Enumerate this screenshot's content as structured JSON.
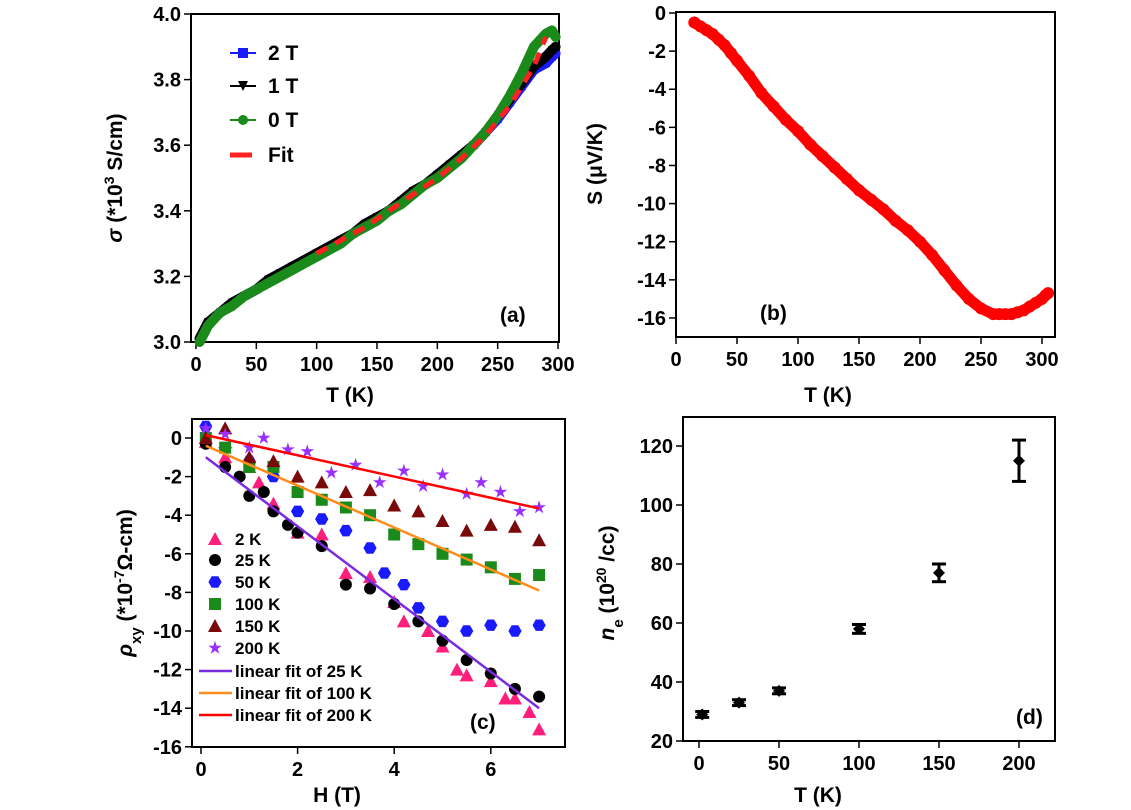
{
  "chart_data": [
    {
      "panel": "a",
      "type": "line",
      "tag": "(a)",
      "xlabel": "T (K)",
      "ylabel": {
        "symbol": "σ",
        "prefix": " (*10",
        "sup": "3",
        "suffix": " S/cm)"
      },
      "xlim": [
        0,
        300
      ],
      "ylim": [
        3.0,
        4.0
      ],
      "xticks": [
        "0",
        "50",
        "100",
        "150",
        "200",
        "250",
        "300"
      ],
      "yticks": [
        "3.0",
        "3.2",
        "3.4",
        "3.6",
        "3.8",
        "4.0"
      ],
      "legend_position": "top-left",
      "x": [
        3,
        10,
        20,
        30,
        40,
        50,
        60,
        70,
        80,
        90,
        100,
        110,
        120,
        130,
        140,
        150,
        160,
        170,
        180,
        190,
        200,
        210,
        220,
        230,
        240,
        250,
        260,
        270,
        280,
        290,
        295,
        298
      ],
      "series": [
        {
          "name": "2 T",
          "color": "#1a1aff",
          "marker": "square",
          "values": [
            3.01,
            3.06,
            3.09,
            3.12,
            3.14,
            3.16,
            3.19,
            3.21,
            3.23,
            3.25,
            3.27,
            3.29,
            3.31,
            3.33,
            3.36,
            3.38,
            3.4,
            3.43,
            3.46,
            3.48,
            3.51,
            3.54,
            3.57,
            3.6,
            3.64,
            3.68,
            3.73,
            3.78,
            3.83,
            3.85,
            3.87,
            3.88
          ]
        },
        {
          "name": "1 T",
          "color": "#000000",
          "marker": "triangle-down",
          "values": [
            3.01,
            3.06,
            3.09,
            3.12,
            3.14,
            3.16,
            3.19,
            3.21,
            3.23,
            3.25,
            3.27,
            3.29,
            3.31,
            3.33,
            3.36,
            3.38,
            3.4,
            3.43,
            3.46,
            3.48,
            3.51,
            3.54,
            3.57,
            3.6,
            3.64,
            3.69,
            3.74,
            3.79,
            3.84,
            3.87,
            3.89,
            3.9
          ]
        },
        {
          "name": "0 T",
          "color": "#1a8a1a",
          "marker": "circle",
          "values": [
            3.0,
            3.05,
            3.09,
            3.11,
            3.14,
            3.16,
            3.18,
            3.2,
            3.22,
            3.24,
            3.26,
            3.28,
            3.3,
            3.33,
            3.35,
            3.37,
            3.4,
            3.42,
            3.45,
            3.48,
            3.5,
            3.53,
            3.56,
            3.6,
            3.64,
            3.69,
            3.75,
            3.82,
            3.9,
            3.94,
            3.95,
            3.93
          ]
        },
        {
          "name": "Fit",
          "color": "#ff2020",
          "marker": "dashed-line",
          "x": [
            100,
            120,
            140,
            160,
            180,
            200,
            220,
            240,
            260,
            280,
            290
          ],
          "values": [
            3.27,
            3.31,
            3.35,
            3.4,
            3.45,
            3.5,
            3.56,
            3.63,
            3.72,
            3.84,
            3.93
          ]
        }
      ]
    },
    {
      "panel": "b",
      "type": "scatter",
      "tag": "(b)",
      "xlabel": "T (K)",
      "ylabel": {
        "symbol": "S",
        "prefix": " (μV/K)",
        "sup": "",
        "suffix": ""
      },
      "xlim": [
        0,
        310
      ],
      "ylim": [
        -17,
        0
      ],
      "xticks": [
        "0",
        "50",
        "100",
        "150",
        "200",
        "250",
        "300"
      ],
      "yticks": [
        "0",
        "-2",
        "-4",
        "-6",
        "-8",
        "-10",
        "-12",
        "-14",
        "-16"
      ],
      "color": "#ff0000",
      "x": [
        15,
        20,
        25,
        30,
        35,
        40,
        45,
        50,
        60,
        70,
        80,
        90,
        100,
        110,
        120,
        130,
        140,
        150,
        160,
        170,
        180,
        190,
        200,
        210,
        220,
        230,
        240,
        250,
        260,
        265,
        270,
        275,
        280,
        285,
        290,
        295,
        300,
        303,
        305
      ],
      "values": [
        -0.5,
        -0.7,
        -0.9,
        -1.1,
        -1.4,
        -1.7,
        -2.1,
        -2.5,
        -3.3,
        -4.2,
        -4.9,
        -5.6,
        -6.2,
        -6.9,
        -7.5,
        -8.1,
        -8.7,
        -9.3,
        -9.8,
        -10.3,
        -10.9,
        -11.4,
        -12.0,
        -12.7,
        -13.5,
        -14.3,
        -15.0,
        -15.5,
        -15.8,
        -15.8,
        -15.8,
        -15.8,
        -15.7,
        -15.6,
        -15.4,
        -15.2,
        -15.0,
        -14.8,
        -14.7
      ]
    },
    {
      "panel": "c",
      "type": "scatter",
      "tag": "(c)",
      "xlabel": "H (T)",
      "ylabel": {
        "symbol": "ρ",
        "sub": "xy",
        "prefix": " (*10",
        "sup": "-7",
        "suffix": "Ω-cm)"
      },
      "xlim": [
        0,
        7
      ],
      "ylim": [
        -16,
        1
      ],
      "xticks": [
        "0",
        "2",
        "4",
        "6"
      ],
      "yticks": [
        "0",
        "-2",
        "-4",
        "-6",
        "-8",
        "-10",
        "-12",
        "-14",
        "-16"
      ],
      "legend_position": "left",
      "series": [
        {
          "name": "2 K",
          "color": "#ff1f7a",
          "marker": "triangle",
          "x": [
            0.1,
            0.5,
            1.0,
            1.2,
            1.5,
            2.0,
            2.5,
            3.0,
            3.5,
            4.0,
            4.2,
            4.7,
            5.0,
            5.3,
            5.5,
            6.0,
            6.3,
            6.5,
            6.8,
            7.0
          ],
          "values": [
            -0.2,
            -1.0,
            -1.5,
            -2.3,
            -3.4,
            -4.9,
            -5.0,
            -7.0,
            -7.2,
            -8.5,
            -9.5,
            -10.0,
            -10.8,
            -12.0,
            -12.3,
            -12.6,
            -13.5,
            -13.5,
            -14.2,
            -15.1
          ]
        },
        {
          "name": "25 K",
          "color": "#000000",
          "marker": "circle",
          "x": [
            0.1,
            0.5,
            0.8,
            1.0,
            1.3,
            1.5,
            1.8,
            2.0,
            2.5,
            3.0,
            3.5,
            4.0,
            4.5,
            5.0,
            5.5,
            6.0,
            6.5,
            7.0
          ],
          "values": [
            -0.3,
            -1.5,
            -2.0,
            -3.0,
            -2.8,
            -3.8,
            -4.5,
            -4.9,
            -5.6,
            -7.6,
            -7.8,
            -8.6,
            -9.5,
            -10.5,
            -11.5,
            -12.2,
            -13.0,
            -13.4
          ]
        },
        {
          "name": "50 K",
          "color": "#1a1aff",
          "marker": "hexagon",
          "x": [
            0.1,
            0.5,
            1.0,
            1.5,
            2.0,
            2.5,
            3.0,
            3.5,
            3.8,
            4.2,
            4.5,
            5.0,
            5.5,
            6.0,
            6.5,
            7.0
          ],
          "values": [
            0.6,
            -0.5,
            -1.2,
            -2.0,
            -3.8,
            -4.2,
            -4.8,
            -5.7,
            -7.0,
            -7.6,
            -8.8,
            -9.5,
            -10.0,
            -9.7,
            -10.0,
            -9.7
          ]
        },
        {
          "name": "100 K",
          "color": "#1a8a1a",
          "marker": "square",
          "x": [
            0.1,
            0.5,
            1.0,
            1.5,
            2.0,
            2.5,
            3.0,
            3.5,
            4.0,
            4.5,
            5.0,
            5.5,
            6.0,
            6.5,
            7.0
          ],
          "values": [
            0.0,
            -0.5,
            -1.5,
            -1.5,
            -2.8,
            -3.2,
            -3.6,
            -4.0,
            -5.0,
            -5.5,
            -6.0,
            -6.3,
            -6.7,
            -7.3,
            -7.1
          ]
        },
        {
          "name": "150 K",
          "color": "#7a0a0a",
          "marker": "triangle",
          "x": [
            0.1,
            0.5,
            1.0,
            1.5,
            2.0,
            2.5,
            3.0,
            3.5,
            4.0,
            4.5,
            5.0,
            5.5,
            6.0,
            6.5,
            7.0
          ],
          "values": [
            0.0,
            0.5,
            -1.0,
            -1.2,
            -2.0,
            -2.3,
            -2.8,
            -2.7,
            -3.5,
            -3.8,
            -4.3,
            -4.8,
            -4.5,
            -4.6,
            -5.3
          ]
        },
        {
          "name": "200 K",
          "color": "#9a30ff",
          "marker": "star",
          "x": [
            0.1,
            0.5,
            1.0,
            1.3,
            1.8,
            2.2,
            2.7,
            3.2,
            3.7,
            4.2,
            4.6,
            5.0,
            5.5,
            5.8,
            6.2,
            6.6,
            7.0
          ],
          "values": [
            0.5,
            0.2,
            -0.5,
            0.0,
            -0.6,
            -0.7,
            -1.8,
            -1.4,
            -2.3,
            -1.7,
            -2.5,
            -1.9,
            -2.9,
            -2.3,
            -2.8,
            -3.8,
            -3.6
          ]
        },
        {
          "name": "linear fit of 25 K",
          "color": "#7a2ae0",
          "marker": "line",
          "x": [
            0.1,
            7.0
          ],
          "values": [
            -1.0,
            -14.0
          ]
        },
        {
          "name": "linear fit of 100 K",
          "color": "#ff8c1a",
          "marker": "line",
          "x": [
            0.1,
            7.0
          ],
          "values": [
            -0.4,
            -7.9
          ]
        },
        {
          "name": "linear fit of 200 K",
          "color": "#ff0000",
          "marker": "line",
          "x": [
            0.1,
            7.0
          ],
          "values": [
            0.15,
            -3.65
          ]
        }
      ]
    },
    {
      "panel": "d",
      "type": "scatter",
      "tag": "(d)",
      "xlabel": "T (K)",
      "ylabel": {
        "symbol": "n",
        "sub": "e",
        "prefix": " (10",
        "sup": "20",
        "suffix": " /cc)"
      },
      "xlim": [
        -10,
        222
      ],
      "ylim": [
        20,
        130
      ],
      "xticks": [
        "0",
        "50",
        "100",
        "150",
        "200"
      ],
      "yticks": [
        "20",
        "40",
        "60",
        "80",
        "100",
        "120"
      ],
      "x": [
        2,
        25,
        50,
        100,
        150,
        200
      ],
      "values": [
        29,
        33,
        37,
        58,
        77,
        115
      ],
      "errors": [
        1,
        1,
        1,
        1.5,
        3,
        7
      ]
    }
  ]
}
